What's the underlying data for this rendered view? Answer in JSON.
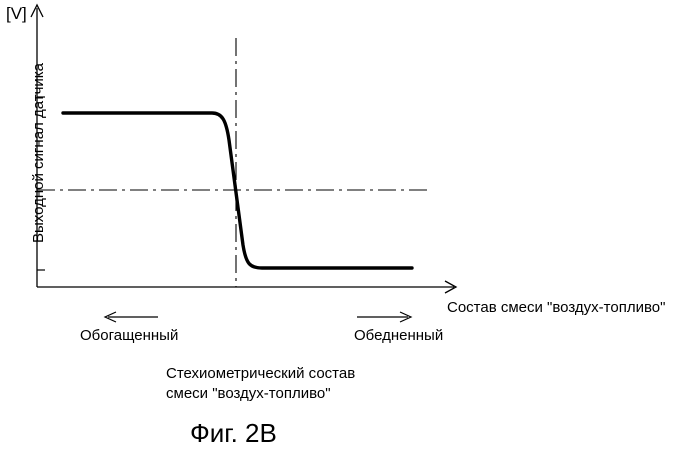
{
  "unit_label": "[V]",
  "y_axis_label": "Выходной сигнал датчика",
  "x_axis_label": "Состав смеси \"воздух-топливо\"",
  "left_direction_label": "Обогащенный",
  "right_direction_label": "Обедненный",
  "stoichiometric_label_line1": "Стехиометрический состав",
  "stoichiometric_label_line2": "смеси \"воздух-топливо\"",
  "figure_caption": "Фиг. 2B",
  "colors": {
    "line": "#000000",
    "background": "#ffffff"
  }
}
